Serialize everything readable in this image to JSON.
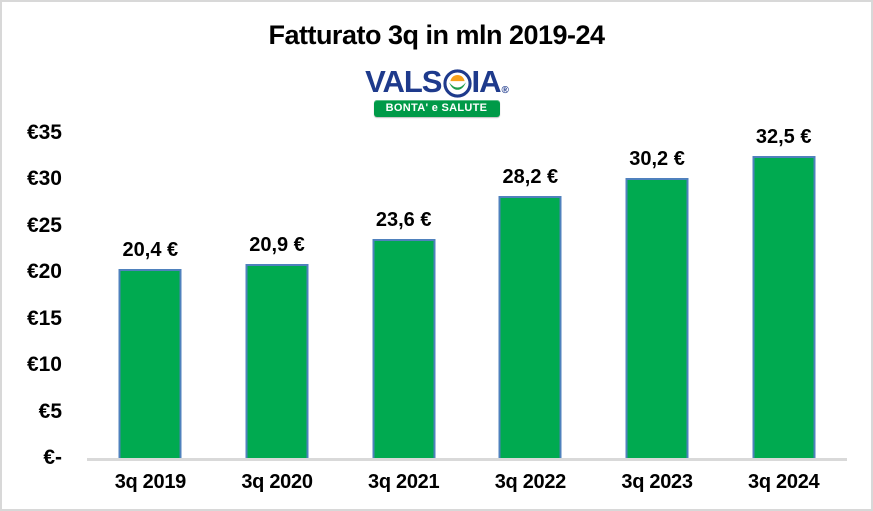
{
  "frame": {
    "background": "#ffffff",
    "border_color": "#d8d8d8"
  },
  "logo": {
    "brand": "VALSOIA",
    "brand_left": "VALS",
    "brand_right": "IA",
    "registered": "®",
    "tagline": "BONTA' e SALUTE",
    "brand_color": "#1e3a8c",
    "banner_green": "#009a48",
    "sun_orange": "#f6a01a",
    "leaf_green": "#1d9c49"
  },
  "chart_data": {
    "type": "bar",
    "title": "Fatturato 3q in mln 2019-24",
    "categories": [
      "3q 2019",
      "3q 2020",
      "3q 2021",
      "3q 2022",
      "3q 2023",
      "3q 2024"
    ],
    "values": [
      20.4,
      20.9,
      23.6,
      28.2,
      30.2,
      32.5
    ],
    "value_labels": [
      "20,4 €",
      "20,9 €",
      "23,6 €",
      "28,2 €",
      "30,2 €",
      "32,5 €"
    ],
    "y_ticks": [
      "€35",
      "€30",
      "€25",
      "€20",
      "€15",
      "€10",
      "€5",
      "€-"
    ],
    "ylim": [
      0,
      35
    ],
    "xlabel": "",
    "ylabel": "",
    "grid": false,
    "legend": "none",
    "bar_color": "#00aa50",
    "bar_border_color": "#4f81bd",
    "axis_line_color": "#d9d9d9"
  }
}
